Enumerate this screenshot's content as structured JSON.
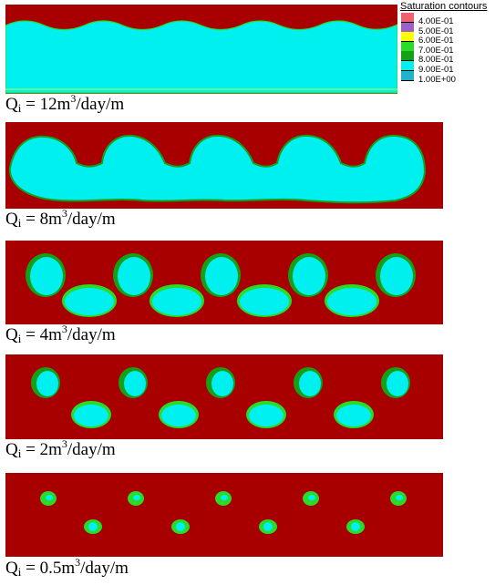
{
  "chart_data": {
    "type": "heatmap",
    "legend": {
      "title": "Saturation contours",
      "placement": "top-right",
      "levels": [
        {
          "label": "4.00E-01",
          "color": "#f06070"
        },
        {
          "label": "5.00E-01",
          "color": "#9a62c8"
        },
        {
          "label": "6.00E-01",
          "color": "#ffff00"
        },
        {
          "label": "7.00E-01",
          "color": "#28dc28"
        },
        {
          "label": "8.00E-01",
          "color": "#16a016"
        },
        {
          "label": "9.00E-01",
          "color": "#00f0f0"
        },
        {
          "label": "1.00E+00",
          "color": "#20b4c8"
        }
      ]
    },
    "colors": {
      "background": "#a80000",
      "plume": "#00f0f0",
      "rim": "#16a016",
      "rim_light": "#28dc28"
    },
    "panels": [
      {
        "caption": {
          "q": "Q",
          "sub": "i",
          "eq": " = 12m",
          "sup": "3",
          "unit": "/day/m"
        },
        "regime": "connected-band"
      },
      {
        "caption": {
          "q": "Q",
          "sub": "i",
          "eq": " = 8m",
          "sup": "3",
          "unit": "/day/m"
        },
        "regime": "merged-lobes"
      },
      {
        "caption": {
          "q": "Q",
          "sub": "i",
          "eq": " = 4m",
          "sup": "3",
          "unit": "/day/m"
        },
        "regime": "isolated-plumes"
      },
      {
        "caption": {
          "q": "Q",
          "sub": "i",
          "eq": " = 2m",
          "sup": "3",
          "unit": "/day/m"
        },
        "regime": "isolated-plumes"
      },
      {
        "caption": {
          "q": "Q",
          "sub": "i",
          "eq": " = 0.5m",
          "sup": "3",
          "unit": "/day/m"
        },
        "regime": "isolated-plumes"
      }
    ]
  }
}
